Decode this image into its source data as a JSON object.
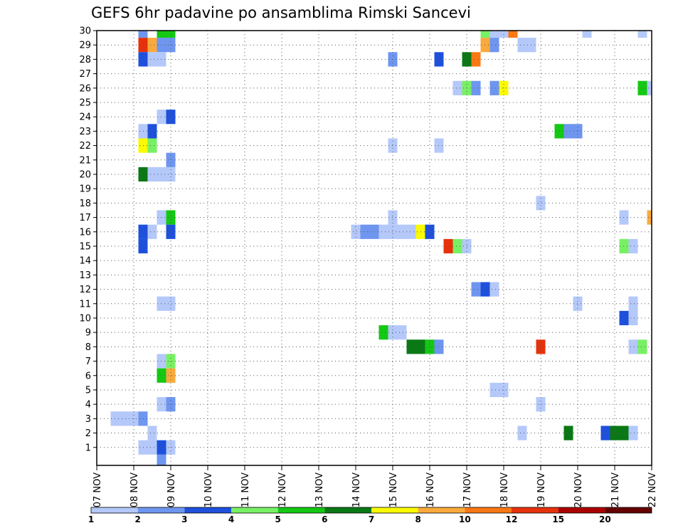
{
  "chart_data": {
    "type": "heatmap",
    "title": "GEFS 6hr padavine po ansamblima Rimski Sancevi",
    "xlabel": "",
    "ylabel": "",
    "x_tick_labels": [
      "07 NOV",
      "08 NOV",
      "09 NOV",
      "10 NOV",
      "11 NOV",
      "12 NOV",
      "13 NOV",
      "14 NOV",
      "15 NOV",
      "16 NOV",
      "17 NOV",
      "18 NOV",
      "19 NOV",
      "20 NOV",
      "21 NOV",
      "22 NOV"
    ],
    "y_tick_labels": [
      "1",
      "2",
      "3",
      "4",
      "5",
      "6",
      "7",
      "8",
      "9",
      "10",
      "11",
      "12",
      "13",
      "14",
      "15",
      "16",
      "17",
      "18",
      "19",
      "20",
      "21",
      "22",
      "23",
      "24",
      "25",
      "26",
      "27",
      "28",
      "29",
      "30"
    ],
    "xlim": [
      "2018-11-07",
      "2018-11-22"
    ],
    "ylim": [
      0,
      30
    ],
    "time_step": "6hr",
    "grid": true,
    "levels": [
      "1",
      "2",
      "3",
      "4",
      "5",
      "6",
      "7",
      "8",
      "10",
      "12",
      "15",
      "20"
    ],
    "colors": [
      "#b4c8fa",
      "#6e96f0",
      "#1e50dc",
      "#78f064",
      "#14c814",
      "#0a7814",
      "#fafa00",
      "#faaa3c",
      "#fa7814",
      "#e6320a",
      "#aa0000",
      "#640000"
    ],
    "note_cells": "each cell = [x, member, color_index]; x = days since 07 NOV (0.25 = 6 hr step); color_index refers to colors[] (0 -> 1-2 mm ... 11 -> >20 mm)",
    "cells": [
      [
        1.25,
        30,
        1
      ],
      [
        1.75,
        30,
        4
      ],
      [
        2.0,
        30,
        4
      ],
      [
        10.5,
        30,
        3
      ],
      [
        10.75,
        30,
        0
      ],
      [
        11.0,
        30,
        0
      ],
      [
        11.25,
        30,
        8
      ],
      [
        13.25,
        30,
        0
      ],
      [
        14.75,
        30,
        0
      ],
      [
        1.25,
        29,
        9
      ],
      [
        1.5,
        29,
        7
      ],
      [
        1.75,
        29,
        1
      ],
      [
        2.0,
        29,
        1
      ],
      [
        10.5,
        29,
        7
      ],
      [
        10.75,
        29,
        1
      ],
      [
        11.5,
        29,
        0
      ],
      [
        11.75,
        29,
        0
      ],
      [
        1.25,
        28,
        2
      ],
      [
        1.5,
        28,
        0
      ],
      [
        1.75,
        28,
        0
      ],
      [
        8.0,
        28,
        1
      ],
      [
        9.25,
        28,
        2
      ],
      [
        10.0,
        28,
        5
      ],
      [
        10.25,
        28,
        8
      ],
      [
        9.75,
        26,
        0
      ],
      [
        10.0,
        26,
        3
      ],
      [
        10.25,
        26,
        1
      ],
      [
        10.75,
        26,
        1
      ],
      [
        11.0,
        26,
        6
      ],
      [
        14.75,
        26,
        4
      ],
      [
        15.0,
        26,
        0
      ],
      [
        1.75,
        24,
        0
      ],
      [
        2.0,
        24,
        2
      ],
      [
        1.25,
        23,
        0
      ],
      [
        1.5,
        23,
        2
      ],
      [
        12.5,
        23,
        4
      ],
      [
        12.75,
        23,
        1
      ],
      [
        13.0,
        23,
        1
      ],
      [
        1.25,
        22,
        6
      ],
      [
        1.5,
        22,
        3
      ],
      [
        8.0,
        22,
        0
      ],
      [
        9.25,
        22,
        0
      ],
      [
        2.0,
        21,
        1
      ],
      [
        1.25,
        20,
        5
      ],
      [
        1.5,
        20,
        0
      ],
      [
        1.75,
        20,
        0
      ],
      [
        2.0,
        20,
        0
      ],
      [
        12.0,
        18,
        0
      ],
      [
        1.75,
        17,
        0
      ],
      [
        2.0,
        17,
        4
      ],
      [
        8.0,
        17,
        0
      ],
      [
        14.25,
        17,
        0
      ],
      [
        15.0,
        17,
        7
      ],
      [
        1.25,
        16,
        2
      ],
      [
        1.5,
        16,
        0
      ],
      [
        2.0,
        16,
        2
      ],
      [
        7.0,
        16,
        0
      ],
      [
        7.25,
        16,
        1
      ],
      [
        7.5,
        16,
        1
      ],
      [
        7.75,
        16,
        0
      ],
      [
        8.0,
        16,
        0
      ],
      [
        8.25,
        16,
        0
      ],
      [
        8.5,
        16,
        0
      ],
      [
        8.75,
        16,
        6
      ],
      [
        9.0,
        16,
        2
      ],
      [
        1.25,
        15,
        2
      ],
      [
        9.5,
        15,
        9
      ],
      [
        9.75,
        15,
        3
      ],
      [
        10.0,
        15,
        0
      ],
      [
        14.25,
        15,
        3
      ],
      [
        14.5,
        15,
        0
      ],
      [
        10.25,
        12,
        1
      ],
      [
        10.5,
        12,
        2
      ],
      [
        10.75,
        12,
        0
      ],
      [
        1.75,
        11,
        0
      ],
      [
        2.0,
        11,
        0
      ],
      [
        13.0,
        11,
        0
      ],
      [
        14.5,
        11,
        0
      ],
      [
        14.25,
        10,
        2
      ],
      [
        14.5,
        10,
        0
      ],
      [
        7.75,
        9,
        4
      ],
      [
        8.0,
        9,
        0
      ],
      [
        8.25,
        9,
        0
      ],
      [
        8.5,
        8,
        5
      ],
      [
        8.75,
        8,
        5
      ],
      [
        9.0,
        8,
        4
      ],
      [
        9.25,
        8,
        1
      ],
      [
        12.0,
        8,
        9
      ],
      [
        14.5,
        8,
        0
      ],
      [
        14.75,
        8,
        3
      ],
      [
        1.75,
        7,
        0
      ],
      [
        2.0,
        7,
        3
      ],
      [
        1.75,
        6,
        4
      ],
      [
        2.0,
        6,
        7
      ],
      [
        10.75,
        5,
        0
      ],
      [
        11.0,
        5,
        0
      ],
      [
        1.75,
        4,
        0
      ],
      [
        2.0,
        4,
        1
      ],
      [
        12.0,
        4,
        0
      ],
      [
        0.5,
        3,
        0
      ],
      [
        0.75,
        3,
        0
      ],
      [
        1.0,
        3,
        0
      ],
      [
        1.25,
        3,
        1
      ],
      [
        1.5,
        2,
        0
      ],
      [
        11.5,
        2,
        0
      ],
      [
        12.75,
        2,
        5
      ],
      [
        13.75,
        2,
        2
      ],
      [
        14.0,
        2,
        5
      ],
      [
        14.25,
        2,
        5
      ],
      [
        14.5,
        2,
        0
      ],
      [
        1.25,
        1,
        0
      ],
      [
        1.5,
        1,
        0
      ],
      [
        1.75,
        1,
        2
      ],
      [
        2.0,
        1,
        0
      ],
      [
        1.75,
        0,
        1
      ]
    ]
  }
}
